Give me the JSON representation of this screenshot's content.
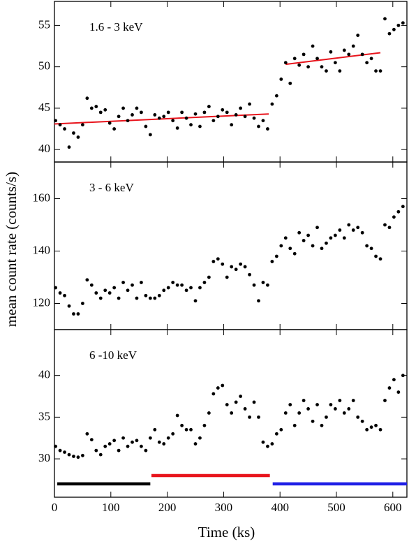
{
  "chart_data": [
    {
      "type": "scatter",
      "annotation": "1.6 - 3 keV",
      "color": "#000000",
      "xlim": [
        0,
        625
      ],
      "xticks": [
        0,
        100,
        200,
        300,
        400,
        500,
        600
      ],
      "ylim": [
        38.5,
        57.9
      ],
      "yticks": [
        40,
        45,
        50,
        55
      ],
      "x": [
        2,
        10,
        18,
        26,
        34,
        42,
        50,
        58,
        66,
        74,
        82,
        90,
        98,
        106,
        114,
        122,
        130,
        138,
        146,
        154,
        162,
        170,
        178,
        186,
        194,
        202,
        210,
        218,
        226,
        234,
        242,
        250,
        258,
        266,
        274,
        282,
        290,
        298,
        306,
        314,
        322,
        330,
        338,
        346,
        354,
        362,
        370,
        378,
        386,
        394,
        402,
        410,
        418,
        426,
        434,
        442,
        450,
        458,
        466,
        474,
        482,
        490,
        498,
        506,
        514,
        522,
        530,
        538,
        546,
        554,
        562,
        570,
        578,
        586,
        594,
        602,
        610,
        618
      ],
      "values": [
        43.5,
        43.0,
        42.5,
        40.3,
        42.0,
        41.5,
        43.0,
        46.2,
        45.0,
        45.2,
        44.5,
        44.8,
        43.2,
        42.5,
        44.0,
        45.0,
        43.5,
        44.2,
        45.0,
        44.5,
        42.8,
        41.8,
        44.2,
        43.8,
        44.0,
        44.5,
        43.5,
        42.6,
        44.5,
        43.8,
        43.0,
        44.3,
        42.8,
        44.5,
        45.2,
        43.5,
        44.0,
        44.8,
        44.5,
        43.0,
        44.2,
        45.0,
        44.0,
        45.5,
        43.8,
        42.8,
        43.5,
        42.5,
        45.5,
        46.5,
        48.5,
        50.5,
        48.0,
        51.0,
        50.2,
        51.5,
        50.0,
        52.5,
        51.0,
        50.0,
        49.5,
        51.8,
        50.5,
        49.5,
        52.0,
        51.5,
        52.5,
        53.8,
        51.5,
        50.5,
        51.0,
        49.5,
        49.5,
        55.8,
        54.0,
        54.5,
        55.0,
        55.3
      ],
      "fits": [
        {
          "color": "#e8141c",
          "x": [
            0,
            380
          ],
          "values": [
            43.1,
            44.3
          ]
        },
        {
          "color": "#e8141c",
          "x": [
            410,
            578
          ],
          "values": [
            50.3,
            51.7
          ]
        }
      ]
    },
    {
      "type": "scatter",
      "annotation": "3 - 6 keV",
      "ylabel": "mean count rate (counts/s)",
      "color": "#000000",
      "xlim": [
        0,
        625
      ],
      "xticks": [
        0,
        100,
        200,
        300,
        400,
        500,
        600
      ],
      "ylim": [
        110,
        174
      ],
      "yticks": [
        120,
        140,
        160
      ],
      "x": [
        2,
        10,
        18,
        26,
        34,
        42,
        50,
        58,
        66,
        74,
        82,
        90,
        98,
        106,
        114,
        122,
        130,
        138,
        146,
        154,
        162,
        170,
        178,
        186,
        194,
        202,
        210,
        218,
        226,
        234,
        242,
        250,
        258,
        266,
        274,
        282,
        290,
        298,
        306,
        314,
        322,
        330,
        338,
        346,
        354,
        362,
        370,
        378,
        386,
        394,
        402,
        410,
        418,
        426,
        434,
        442,
        450,
        458,
        466,
        474,
        482,
        490,
        498,
        506,
        514,
        522,
        530,
        538,
        546,
        554,
        562,
        570,
        578,
        586,
        594,
        602,
        610,
        618
      ],
      "values": [
        126,
        124,
        123,
        119,
        116,
        116,
        120,
        129,
        127,
        124,
        122,
        125,
        124,
        126,
        122,
        128,
        125,
        127,
        122,
        128,
        123,
        122,
        122,
        123,
        125,
        126,
        128,
        127,
        127,
        125,
        126,
        121,
        126,
        128,
        130,
        136,
        137,
        135,
        130,
        134,
        133,
        135,
        134,
        131,
        127,
        121,
        128,
        127,
        136,
        138,
        142,
        145,
        141,
        139,
        147,
        144,
        146,
        142,
        149,
        141,
        143,
        145,
        146,
        148,
        145,
        150,
        148,
        149,
        147,
        142,
        141,
        138,
        137,
        150,
        149,
        153,
        155,
        157
      ]
    },
    {
      "type": "scatter",
      "annotation": "6 -10 keV",
      "xlabel": "Time (ks)",
      "color": "#000000",
      "xlim": [
        0,
        625
      ],
      "xticks": [
        0,
        100,
        200,
        300,
        400,
        500,
        600
      ],
      "ylim": [
        25.4,
        45.5
      ],
      "yticks": [
        30,
        35,
        40
      ],
      "x": [
        2,
        10,
        18,
        26,
        34,
        42,
        50,
        58,
        66,
        74,
        82,
        90,
        98,
        106,
        114,
        122,
        130,
        138,
        146,
        154,
        162,
        170,
        178,
        186,
        194,
        202,
        210,
        218,
        226,
        234,
        242,
        250,
        258,
        266,
        274,
        282,
        290,
        298,
        306,
        314,
        322,
        330,
        338,
        346,
        354,
        362,
        370,
        378,
        386,
        394,
        402,
        410,
        418,
        426,
        434,
        442,
        450,
        458,
        466,
        474,
        482,
        490,
        498,
        506,
        514,
        522,
        530,
        538,
        546,
        554,
        562,
        570,
        578,
        586,
        594,
        602,
        610,
        618
      ],
      "values": [
        31.5,
        31.0,
        30.8,
        30.5,
        30.3,
        30.2,
        30.4,
        33.0,
        32.3,
        31.0,
        30.5,
        31.5,
        31.8,
        32.2,
        31.0,
        32.5,
        31.5,
        32.0,
        32.2,
        31.5,
        31.0,
        32.5,
        33.5,
        32.0,
        31.8,
        32.5,
        33.0,
        35.2,
        34.0,
        33.5,
        33.5,
        31.8,
        32.5,
        34.0,
        35.5,
        37.8,
        38.5,
        38.8,
        36.5,
        35.5,
        36.8,
        37.5,
        36.0,
        35.0,
        36.8,
        35.0,
        32.0,
        31.5,
        31.8,
        33.0,
        33.5,
        35.5,
        36.5,
        34.0,
        35.5,
        37.0,
        36.0,
        34.5,
        36.5,
        34.0,
        35.0,
        36.5,
        36.0,
        37.0,
        35.5,
        36.0,
        37.0,
        35.0,
        34.5,
        33.5,
        33.8,
        34.0,
        33.5,
        37.0,
        38.5,
        39.5,
        38.0,
        40.0
      ],
      "intervals": [
        {
          "color": "#000000",
          "x": [
            5,
            170
          ],
          "value": 27
        },
        {
          "color": "#e8141c",
          "x": [
            172,
            382
          ],
          "value": 28
        },
        {
          "color": "#1f1fe6",
          "x": [
            387,
            625
          ],
          "value": 27
        }
      ]
    }
  ]
}
